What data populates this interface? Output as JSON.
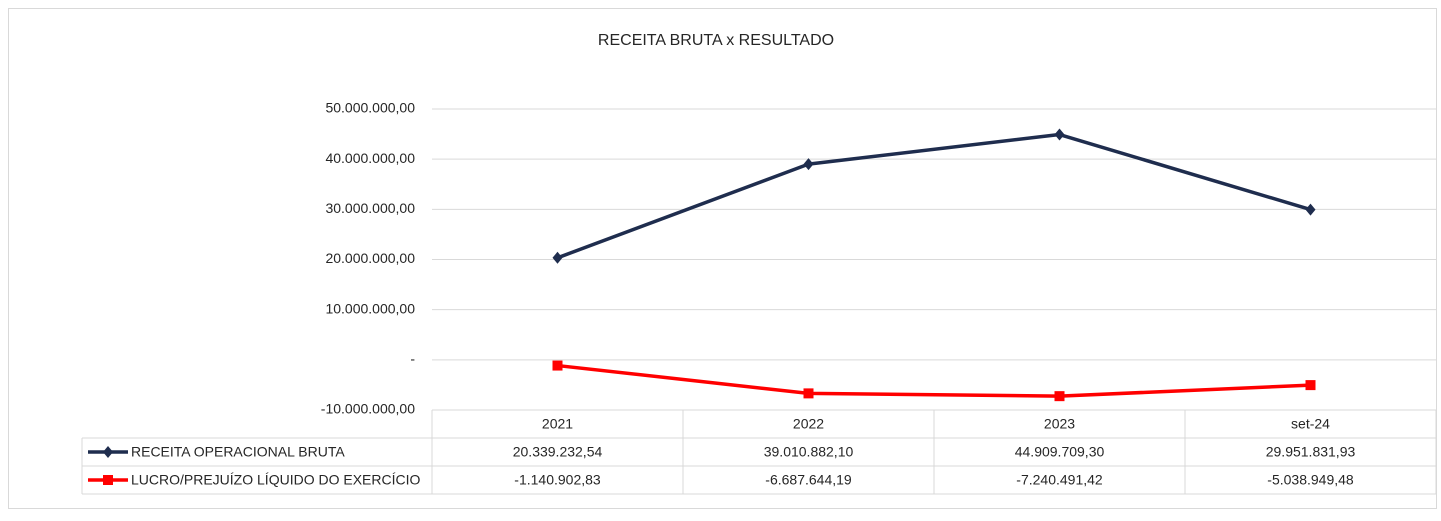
{
  "chart_data": {
    "type": "line",
    "title": "RECEITA BRUTA x RESULTADO",
    "categories": [
      "2021",
      "2022",
      "2023",
      "set-24"
    ],
    "series": [
      {
        "name": "RECEITA OPERACIONAL BRUTA",
        "color": "#1f2d4e",
        "marker": "diamond",
        "values": [
          20339232.54,
          39010882.1,
          44909709.3,
          29951831.93
        ],
        "value_labels": [
          "20.339.232,54",
          "39.010.882,10",
          "44.909.709,30",
          "29.951.831,93"
        ]
      },
      {
        "name": "LUCRO/PREJUÍZO LÍQUIDO DO EXERCÍCIO",
        "color": "#ff0000",
        "marker": "square",
        "values": [
          -1140902.83,
          -6687644.19,
          -7240491.42,
          -5038949.48
        ],
        "value_labels": [
          "-1.140.902,83",
          "-6.687.644,19",
          "-7.240.491,42",
          "-5.038.949,48"
        ]
      }
    ],
    "ylim": [
      -10000000,
      50000000
    ],
    "yticks": [
      {
        "value": -10000000,
        "label": "-10.000.000,00"
      },
      {
        "value": 0,
        "label": "-"
      },
      {
        "value": 10000000,
        "label": "10.000.000,00"
      },
      {
        "value": 20000000,
        "label": "20.000.000,00"
      },
      {
        "value": 30000000,
        "label": "30.000.000,00"
      },
      {
        "value": 40000000,
        "label": "40.000.000,00"
      },
      {
        "value": 50000000,
        "label": "50.000.000,00"
      }
    ],
    "grid": true,
    "data_table": true
  }
}
